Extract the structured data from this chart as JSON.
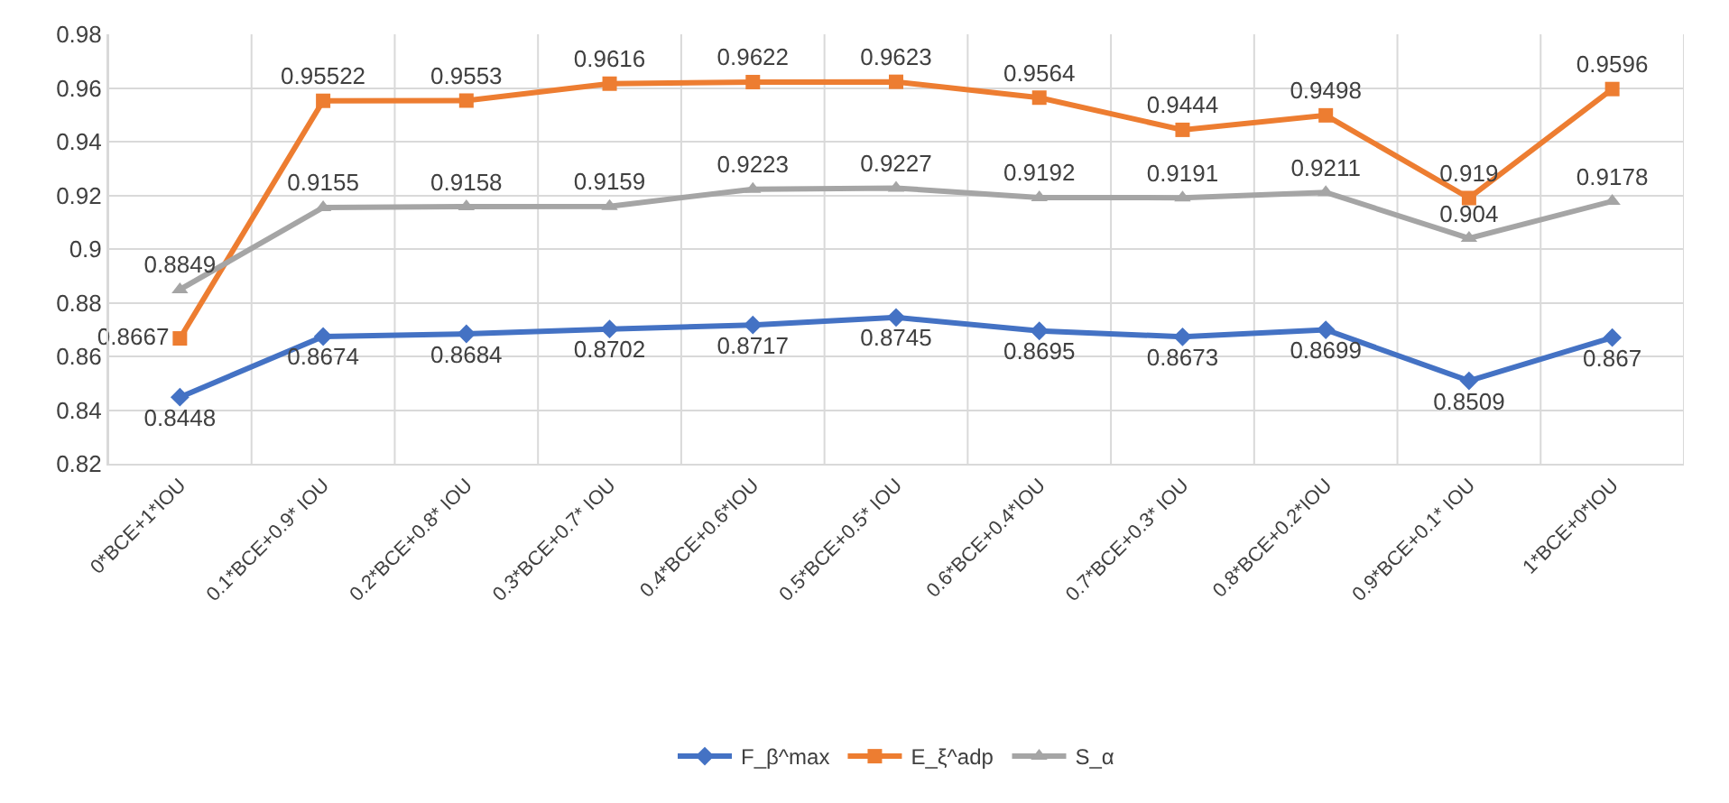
{
  "chart_data": {
    "type": "line",
    "categories": [
      "0*BCE+1*IOU",
      "0.1*BCE+0.9* IOU",
      "0.2*BCE+0.8* IOU",
      "0.3*BCE+0.7* IOU",
      "0.4*BCE+0.6*IOU",
      "0.5*BCE+0.5* IOU",
      "0.6*BCE+0.4*IOU",
      "0.7*BCE+0.3* IOU",
      "0.8*BCE+0.2*IOU",
      "0.9*BCE+0.1* IOU",
      "1*BCE+0*IOU"
    ],
    "series": [
      {
        "name": "F_β^max",
        "color": "#4472c4",
        "marker": "diamond",
        "values": [
          0.8448,
          0.8674,
          0.8684,
          0.8702,
          0.8717,
          0.8745,
          0.8695,
          0.8673,
          0.8699,
          0.8509,
          0.867
        ]
      },
      {
        "name": "E_ξ^adp",
        "color": "#ed7d31",
        "marker": "square",
        "values": [
          0.8667,
          0.95522,
          0.9553,
          0.9616,
          0.9622,
          0.9623,
          0.9564,
          0.9444,
          0.9498,
          0.919,
          0.9596
        ]
      },
      {
        "name": "S_α",
        "color": "#a5a5a5",
        "marker": "triangle",
        "values": [
          0.8849,
          0.9155,
          0.9158,
          0.9159,
          0.9223,
          0.9227,
          0.9192,
          0.9191,
          0.9211,
          0.904,
          0.9178
        ]
      }
    ],
    "ylim": [
      0.82,
      0.98
    ],
    "yticks": [
      0.82,
      0.84,
      0.86,
      0.88,
      0.9,
      0.92,
      0.94,
      0.96,
      0.98
    ],
    "grid": true,
    "legend": "bottom",
    "data_labels": true,
    "line_style": "solid"
  }
}
